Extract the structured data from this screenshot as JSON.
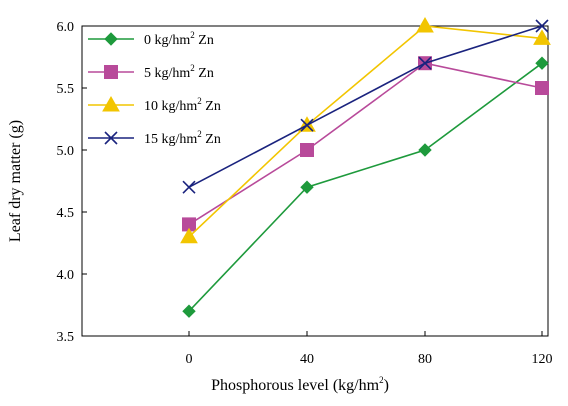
{
  "chart_data": {
    "type": "line",
    "title": "",
    "xlabel": "Phosphorous level (kg/hm",
    "xlabel_sup": "2",
    "xlabel_end": ")",
    "ylabel": "Leaf dry matter (g)",
    "categories": [
      "0",
      "40",
      "80",
      "120"
    ],
    "ylim": [
      3.5,
      6.0
    ],
    "yticks": [
      "3.5",
      "4.0",
      "4.5",
      "5.0",
      "5.5",
      "6.0"
    ],
    "grid": false,
    "legend_position": "top-left",
    "series": [
      {
        "name": "0 kg/hm",
        "name_sup": "2",
        "name_end": " Zn",
        "color": "#1e9a3c",
        "marker": "diamond",
        "values": [
          3.7,
          4.7,
          5.0,
          5.7
        ]
      },
      {
        "name": "5 kg/hm",
        "name_sup": "2",
        "name_end": " Zn",
        "color": "#b84a9a",
        "marker": "square",
        "values": [
          4.4,
          5.0,
          5.7,
          5.5
        ]
      },
      {
        "name": "10 kg/hm",
        "name_sup": "2",
        "name_end": " Zn",
        "color": "#f2c500",
        "marker": "triangle",
        "values": [
          4.3,
          5.2,
          6.0,
          5.9
        ]
      },
      {
        "name": "15 kg/hm",
        "name_sup": "2",
        "name_end": " Zn",
        "color": "#1a237e",
        "marker": "x",
        "values": [
          4.7,
          5.2,
          5.7,
          6.0
        ]
      }
    ]
  }
}
